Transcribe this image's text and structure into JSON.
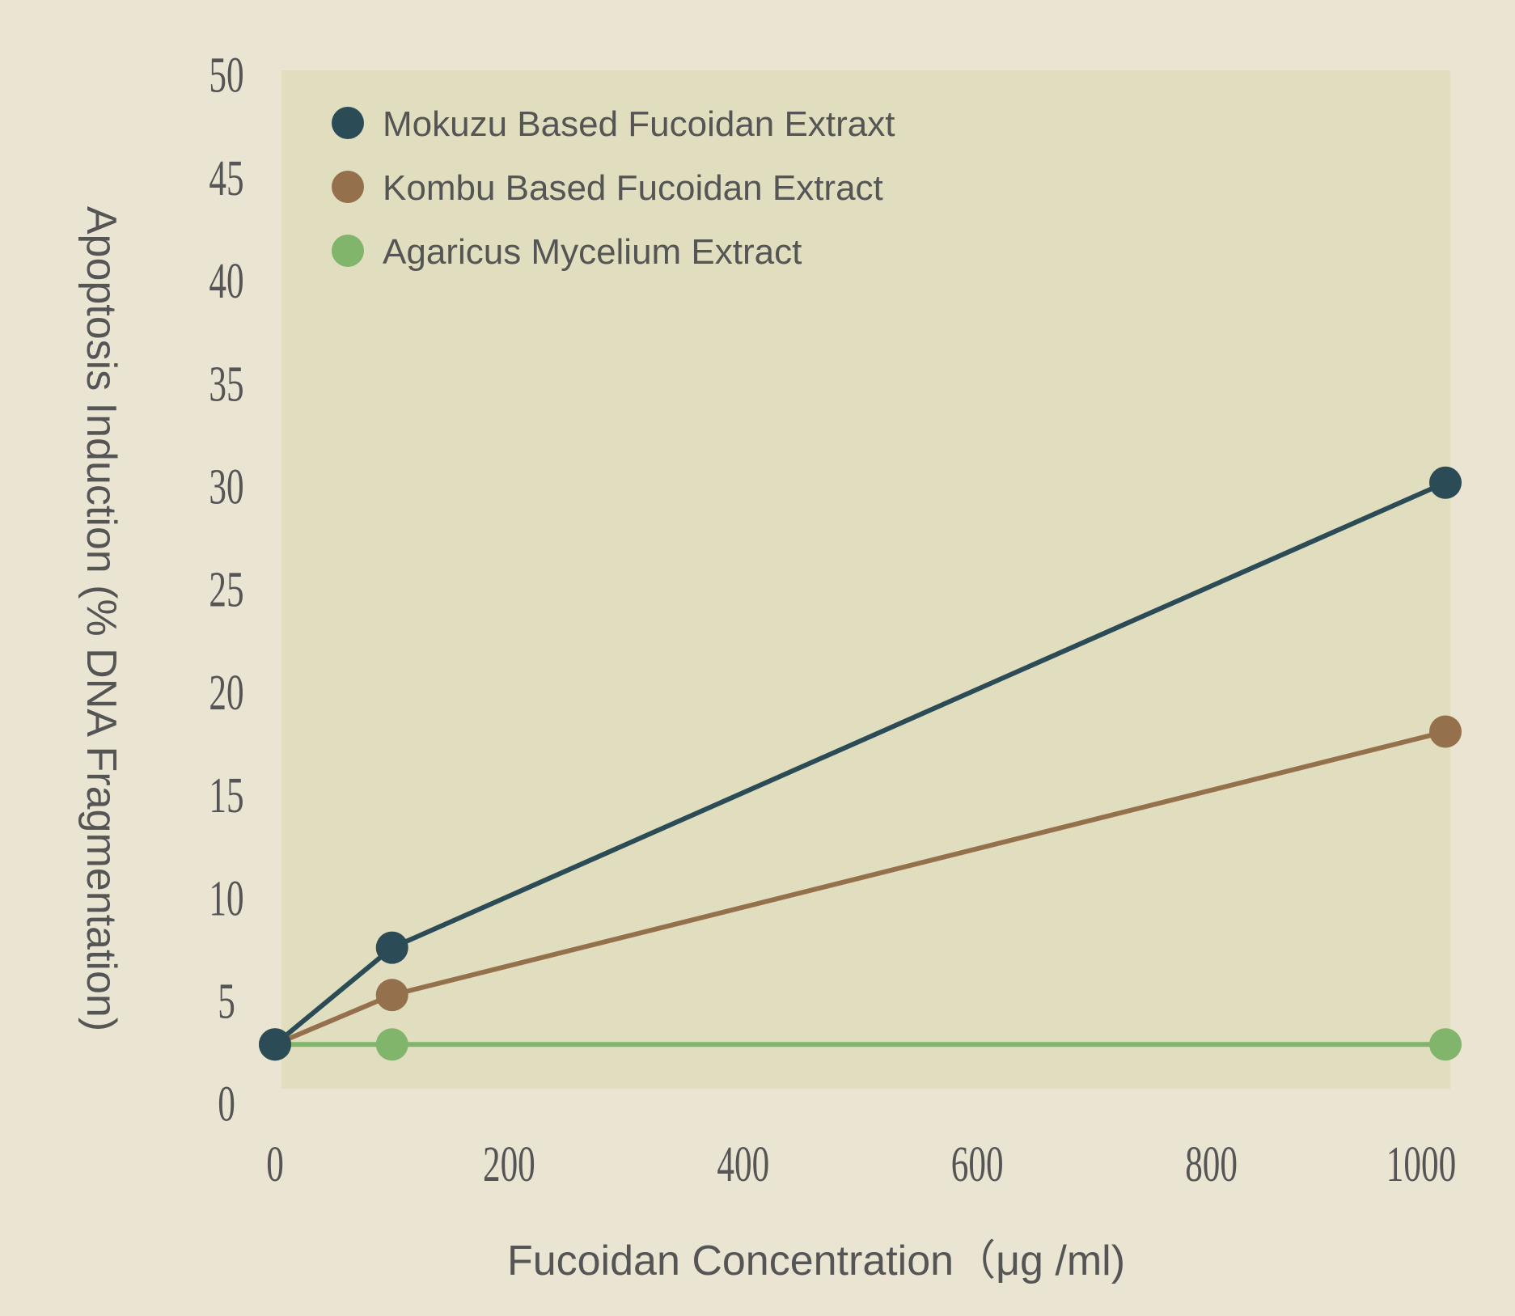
{
  "chart_data": {
    "type": "line",
    "title": "",
    "xlabel": "Fucoidan Concentration（μg /ml)",
    "ylabel": "Apoptosis Induction (% DNA Fragmentation)",
    "xlim": [
      0,
      1000
    ],
    "ylim": [
      0,
      50
    ],
    "xticks": [
      "0",
      "200",
      "400",
      "600",
      "800",
      "1000"
    ],
    "yticks": [
      "0",
      "5",
      "10",
      "15",
      "20",
      "25",
      "30",
      "35",
      "40",
      "45",
      "50"
    ],
    "grid": false,
    "legend_position": "top-left",
    "x": [
      0,
      100,
      1000
    ],
    "series": [
      {
        "name": "Mokuzu Based Fucoidan Extraxt",
        "color": "#2B4C56",
        "values": [
          2.9,
          7.6,
          30.2
        ]
      },
      {
        "name": "Kombu Based Fucoidan Extract",
        "color": "#95704C",
        "values": [
          2.9,
          5.3,
          18.1
        ]
      },
      {
        "name": "Agaricus Mycelium Extract",
        "color": "#82B56C",
        "values": [
          2.9,
          2.9,
          2.9
        ]
      }
    ],
    "colors": {
      "background": "#EAE5D3",
      "plot_background": "#E0DEBE",
      "text": "#555555"
    }
  }
}
